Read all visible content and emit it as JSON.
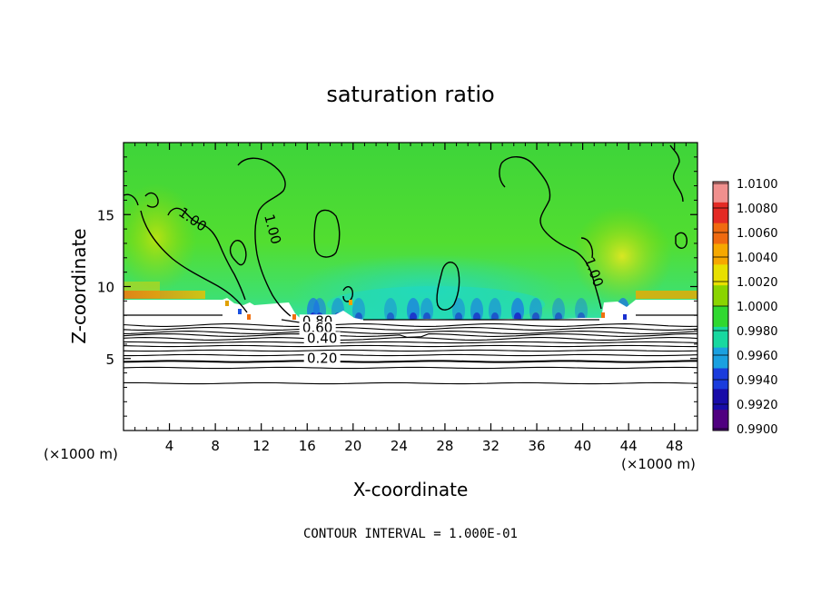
{
  "chart_data": {
    "type": "heatmap",
    "title": "saturation ratio",
    "xlabel": "X-coordinate",
    "ylabel": "Z-coordinate",
    "x_unit": "(×1000 m)",
    "x_unit_right": "(×1000 m)",
    "xlim": [
      0,
      50
    ],
    "ylim": [
      0,
      20
    ],
    "x_ticks": [
      "4",
      "8",
      "12",
      "16",
      "20",
      "24",
      "28",
      "32",
      "36",
      "40",
      "44",
      "48"
    ],
    "x_tick_values": [
      4,
      8,
      12,
      16,
      20,
      24,
      28,
      32,
      36,
      40,
      44,
      48
    ],
    "y_ticks": [
      "5",
      "10",
      "15"
    ],
    "y_tick_values": [
      5,
      10,
      15
    ],
    "colorbar": {
      "labels": [
        "1.0100",
        "1.0080",
        "1.0060",
        "1.0040",
        "1.0020",
        "1.0000",
        "0.9980",
        "0.9960",
        "0.9940",
        "0.9920",
        "0.9900"
      ],
      "colors": [
        "#f0908e",
        "#e42a24",
        "#f06a10",
        "#f6a800",
        "#e8e000",
        "#8ad400",
        "#30d830",
        "#18d8a0",
        "#1aa0e0",
        "#1a3cdc",
        "#180ca8",
        "#500080"
      ]
    },
    "contour_labels": [
      {
        "text": "1.00",
        "x": 5.8,
        "z": 14.4
      },
      {
        "text": "1.00",
        "x": 12.6,
        "z": 13.9
      },
      {
        "text": "1.00",
        "x": 40.6,
        "z": 10.9
      },
      {
        "text": "0.80",
        "x": 16.9,
        "z": 7.3
      },
      {
        "text": "0.60",
        "x": 16.9,
        "z": 6.8
      },
      {
        "text": "0.40",
        "x": 17.3,
        "z": 6.1
      },
      {
        "text": "0.20",
        "x": 17.3,
        "z": 4.7
      }
    ],
    "footer": "CONTOUR INTERVAL = 1.000E-01"
  }
}
